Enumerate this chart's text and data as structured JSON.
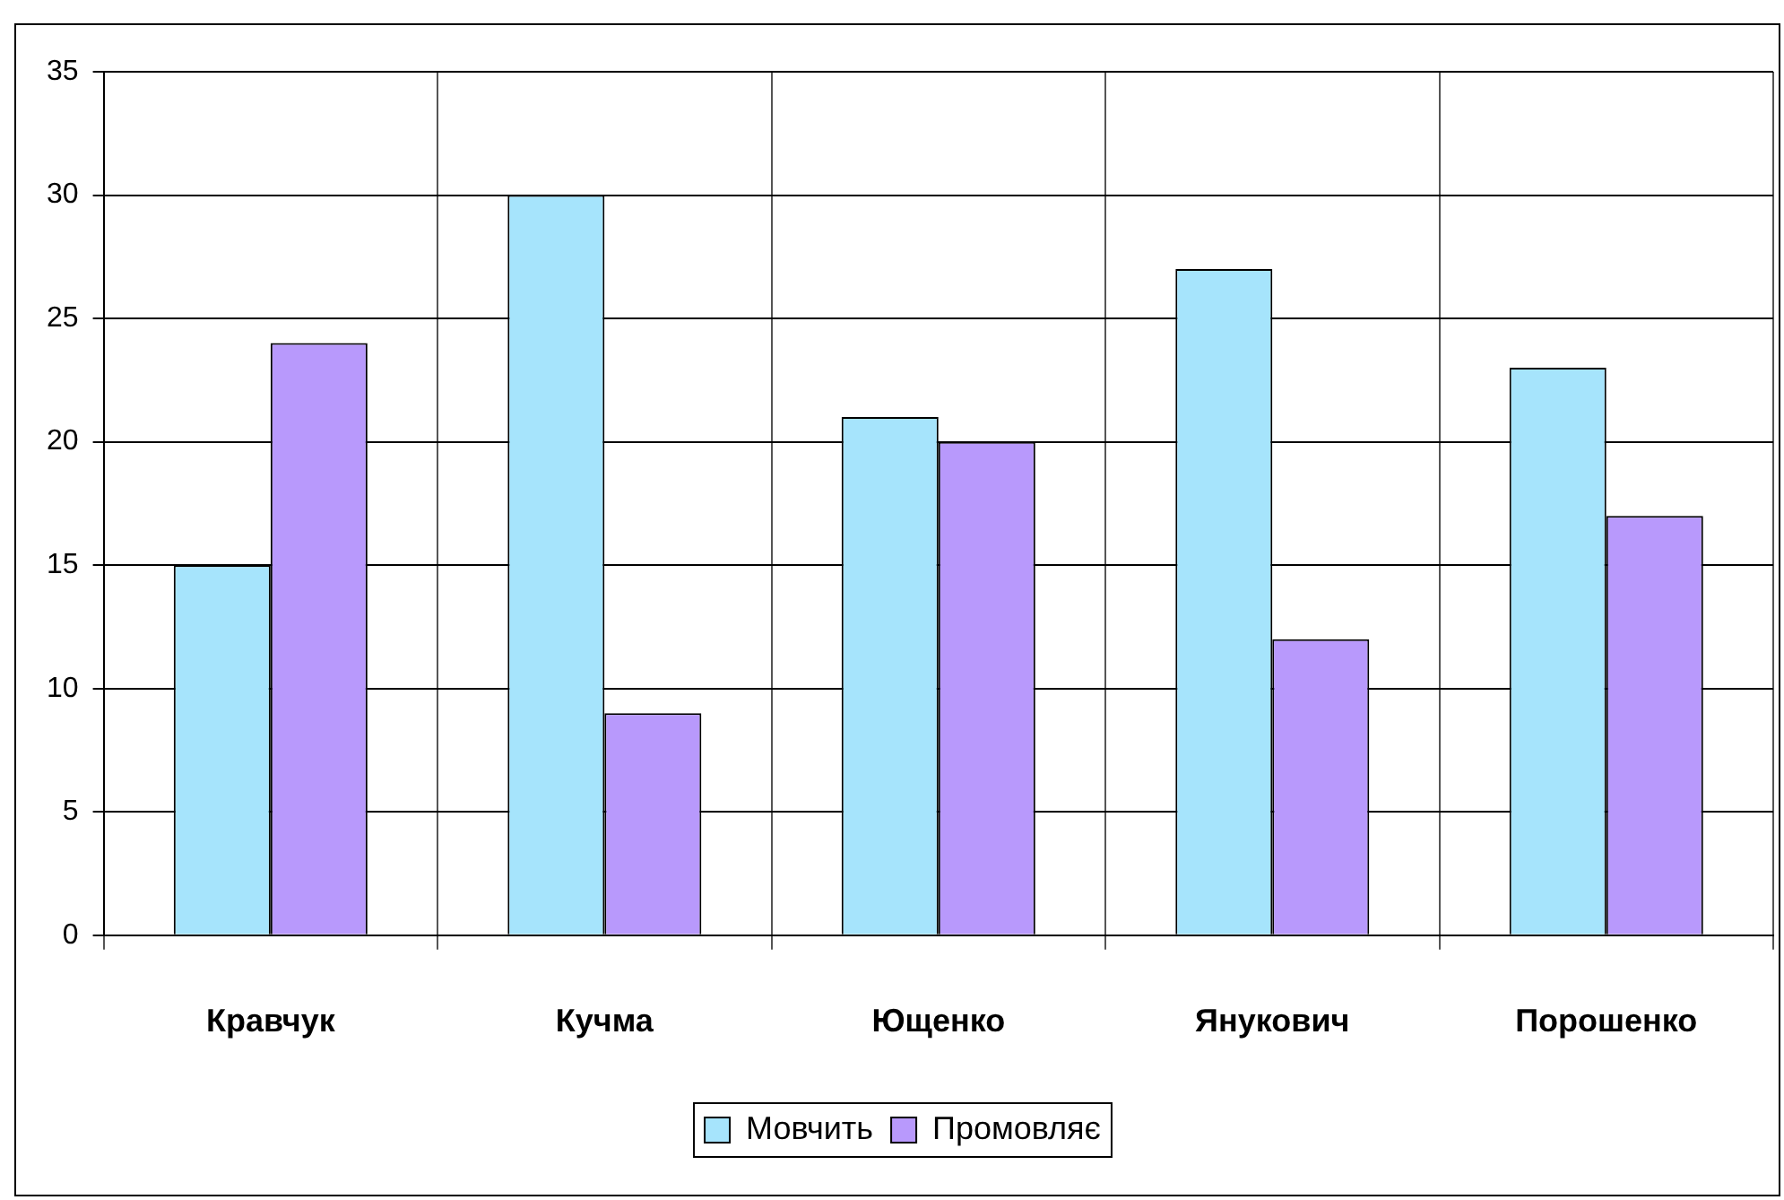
{
  "chart_data": {
    "type": "bar",
    "categories": [
      "Кравчук",
      "Кучма",
      "Ющенко",
      "Янукович",
      "Порошенко"
    ],
    "series": [
      {
        "name": "Мовчить",
        "color": "#a6e4fc",
        "values": [
          15,
          30,
          21,
          27,
          23
        ]
      },
      {
        "name": "Промовляє",
        "color": "#b899fc",
        "values": [
          24,
          9,
          20,
          12,
          17
        ]
      }
    ],
    "ylim": [
      0,
      35
    ],
    "yticks": [
      0,
      5,
      10,
      15,
      20,
      25,
      30,
      35
    ],
    "grid": true,
    "legend": "bottom"
  }
}
